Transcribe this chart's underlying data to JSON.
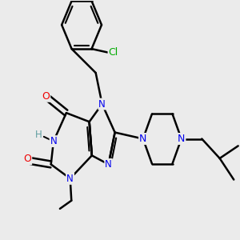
{
  "background_color": "#ebebeb",
  "bond_color": "#000000",
  "bond_width": 1.8,
  "atom_colors": {
    "N": "#0000ee",
    "O": "#ee0000",
    "Cl": "#00aa00",
    "H": "#5f9ea0",
    "C": "#000000"
  },
  "figsize": [
    3.0,
    3.0
  ],
  "dpi": 100
}
